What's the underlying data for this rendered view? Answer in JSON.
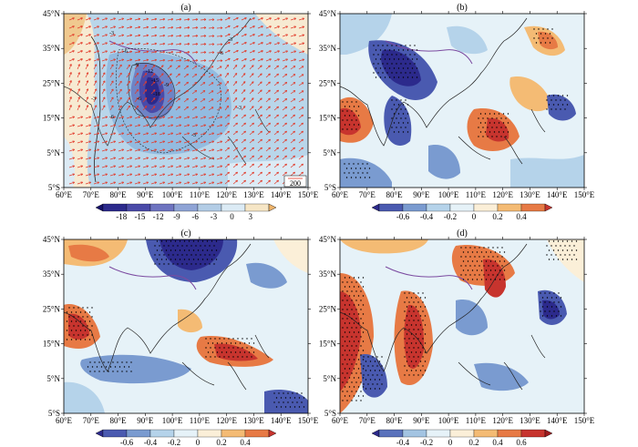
{
  "lon_ticks": [
    "60°E",
    "70°E",
    "80°E",
    "90°E",
    "100°E",
    "110°E",
    "120°E",
    "130°E",
    "140°E",
    "150°E"
  ],
  "lat_ticks": [
    "45°N",
    "35°N",
    "25°N",
    "15°N",
    "5°N",
    "5°S"
  ],
  "panels": [
    {
      "id": "a",
      "label": "(a)",
      "vector_ref": "200",
      "colorbar": {
        "ticks": [
          "-18",
          "-15",
          "-12",
          "-9",
          "-6",
          "-3",
          "0",
          "3"
        ],
        "colors": [
          "#15106a",
          "#2c2a8c",
          "#4a4aa8",
          "#6e74c0",
          "#8fa4d6",
          "#b3cde6",
          "#dcebf5",
          "#f6e6c6",
          "#eeb36a"
        ]
      },
      "contour_labels": [
        "-3",
        "-6",
        "-9",
        "-12",
        "-15",
        "-18",
        "-3",
        "-6",
        "-3",
        "-6",
        "-9",
        "-3",
        "-6",
        "-3"
      ]
    },
    {
      "id": "b",
      "label": "(b)",
      "colorbar": {
        "ticks": [
          "-0.6",
          "-0.4",
          "-0.2",
          "0",
          "0.2",
          "0.4"
        ],
        "colors": [
          "#2c2a8c",
          "#4a5ab0",
          "#7a9bd0",
          "#b5d3ea",
          "#e6f2f8",
          "#fbefd8",
          "#f4bb74",
          "#e77a45",
          "#c7342e"
        ]
      }
    },
    {
      "id": "c",
      "label": "(c)",
      "colorbar": {
        "ticks": [
          "-0.6",
          "-0.4",
          "-0.2",
          "0",
          "0.2",
          "0.4"
        ],
        "colors": [
          "#2c2a8c",
          "#4a5ab0",
          "#7a9bd0",
          "#b5d3ea",
          "#e6f2f8",
          "#fbefd8",
          "#f4bb74",
          "#e77a45",
          "#c7342e"
        ]
      }
    },
    {
      "id": "d",
      "label": "(d)",
      "colorbar": {
        "ticks": [
          "-0.4",
          "-0.2",
          "0",
          "0.2",
          "0.4",
          "0.6"
        ],
        "colors": [
          "#2c2a8c",
          "#5a72bc",
          "#a3c4e2",
          "#e6f2f8",
          "#fbefd8",
          "#f4bb74",
          "#e77a45",
          "#c7342e",
          "#9c1b1f"
        ]
      }
    }
  ]
}
